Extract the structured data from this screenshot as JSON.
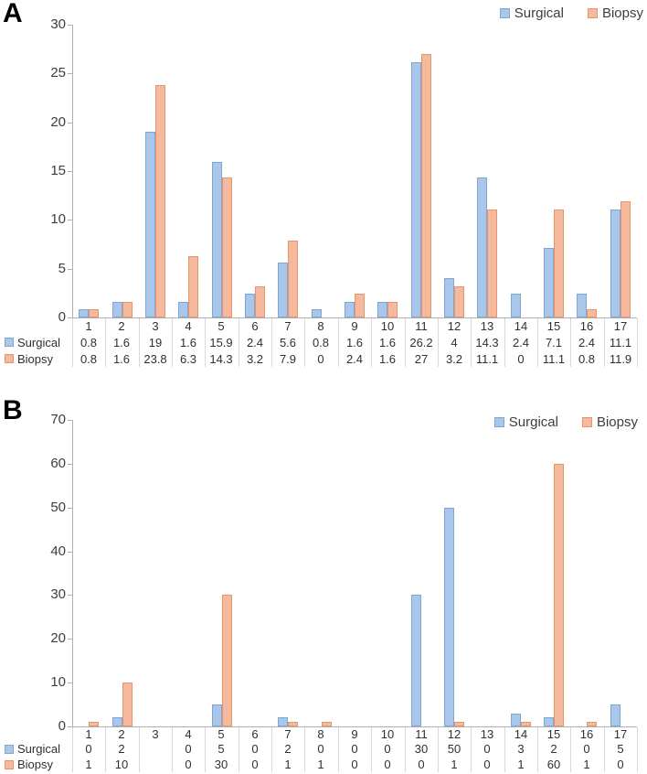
{
  "figure": {
    "panels": [
      {
        "letter": "A",
        "chart_data": {
          "type": "bar",
          "categories": [
            "1",
            "2",
            "3",
            "4",
            "5",
            "6",
            "7",
            "8",
            "9",
            "10",
            "11",
            "12",
            "13",
            "14",
            "15",
            "16",
            "17"
          ],
          "series": [
            {
              "name": "Surgical",
              "values": [
                0.8,
                1.6,
                19,
                1.6,
                15.9,
                2.4,
                5.6,
                0.8,
                1.6,
                1.6,
                26.2,
                4,
                14.3,
                2.4,
                7.1,
                2.4,
                11.1
              ]
            },
            {
              "name": "Biopsy",
              "values": [
                0.8,
                1.6,
                23.8,
                6.3,
                14.3,
                3.2,
                7.9,
                0,
                2.4,
                1.6,
                27,
                3.2,
                11.1,
                0,
                11.1,
                0.8,
                11.9
              ]
            }
          ],
          "title": "",
          "xlabel": "",
          "ylabel": "",
          "ylim": [
            0,
            30
          ],
          "yticks": [
            0,
            5,
            10,
            15,
            20,
            25,
            30
          ],
          "grid": false,
          "legend_position": "top-right",
          "data_table_shown": true
        }
      },
      {
        "letter": "B",
        "chart_data": {
          "type": "bar",
          "categories": [
            "1",
            "2",
            "3",
            "4",
            "5",
            "6",
            "7",
            "8",
            "9",
            "10",
            "11",
            "12",
            "13",
            "14",
            "15",
            "16",
            "17"
          ],
          "series": [
            {
              "name": "Surgical",
              "values": [
                0,
                2,
                null,
                0,
                5,
                0,
                2,
                0,
                0,
                0,
                30,
                50,
                0,
                3,
                2,
                0,
                5
              ]
            },
            {
              "name": "Biopsy",
              "values": [
                1,
                10,
                null,
                0,
                30,
                0,
                1,
                1,
                0,
                0,
                0,
                1,
                0,
                1,
                60,
                1,
                0
              ]
            }
          ],
          "title": "",
          "xlabel": "",
          "ylabel": "",
          "ylim": [
            0,
            70
          ],
          "yticks": [
            0,
            10,
            20,
            30,
            40,
            50,
            60,
            70
          ],
          "grid": false,
          "legend_position": "top-right",
          "data_table_shown": true
        }
      }
    ]
  },
  "colors": {
    "surgical_fill": "#A9C7EA",
    "surgical_border": "#7FA5D2",
    "biopsy_fill": "#F5BA9D",
    "biopsy_border": "#E8946B",
    "axis_line": "#AFAFAF",
    "table_grid": "#D9D9D9",
    "text": "#333333"
  }
}
